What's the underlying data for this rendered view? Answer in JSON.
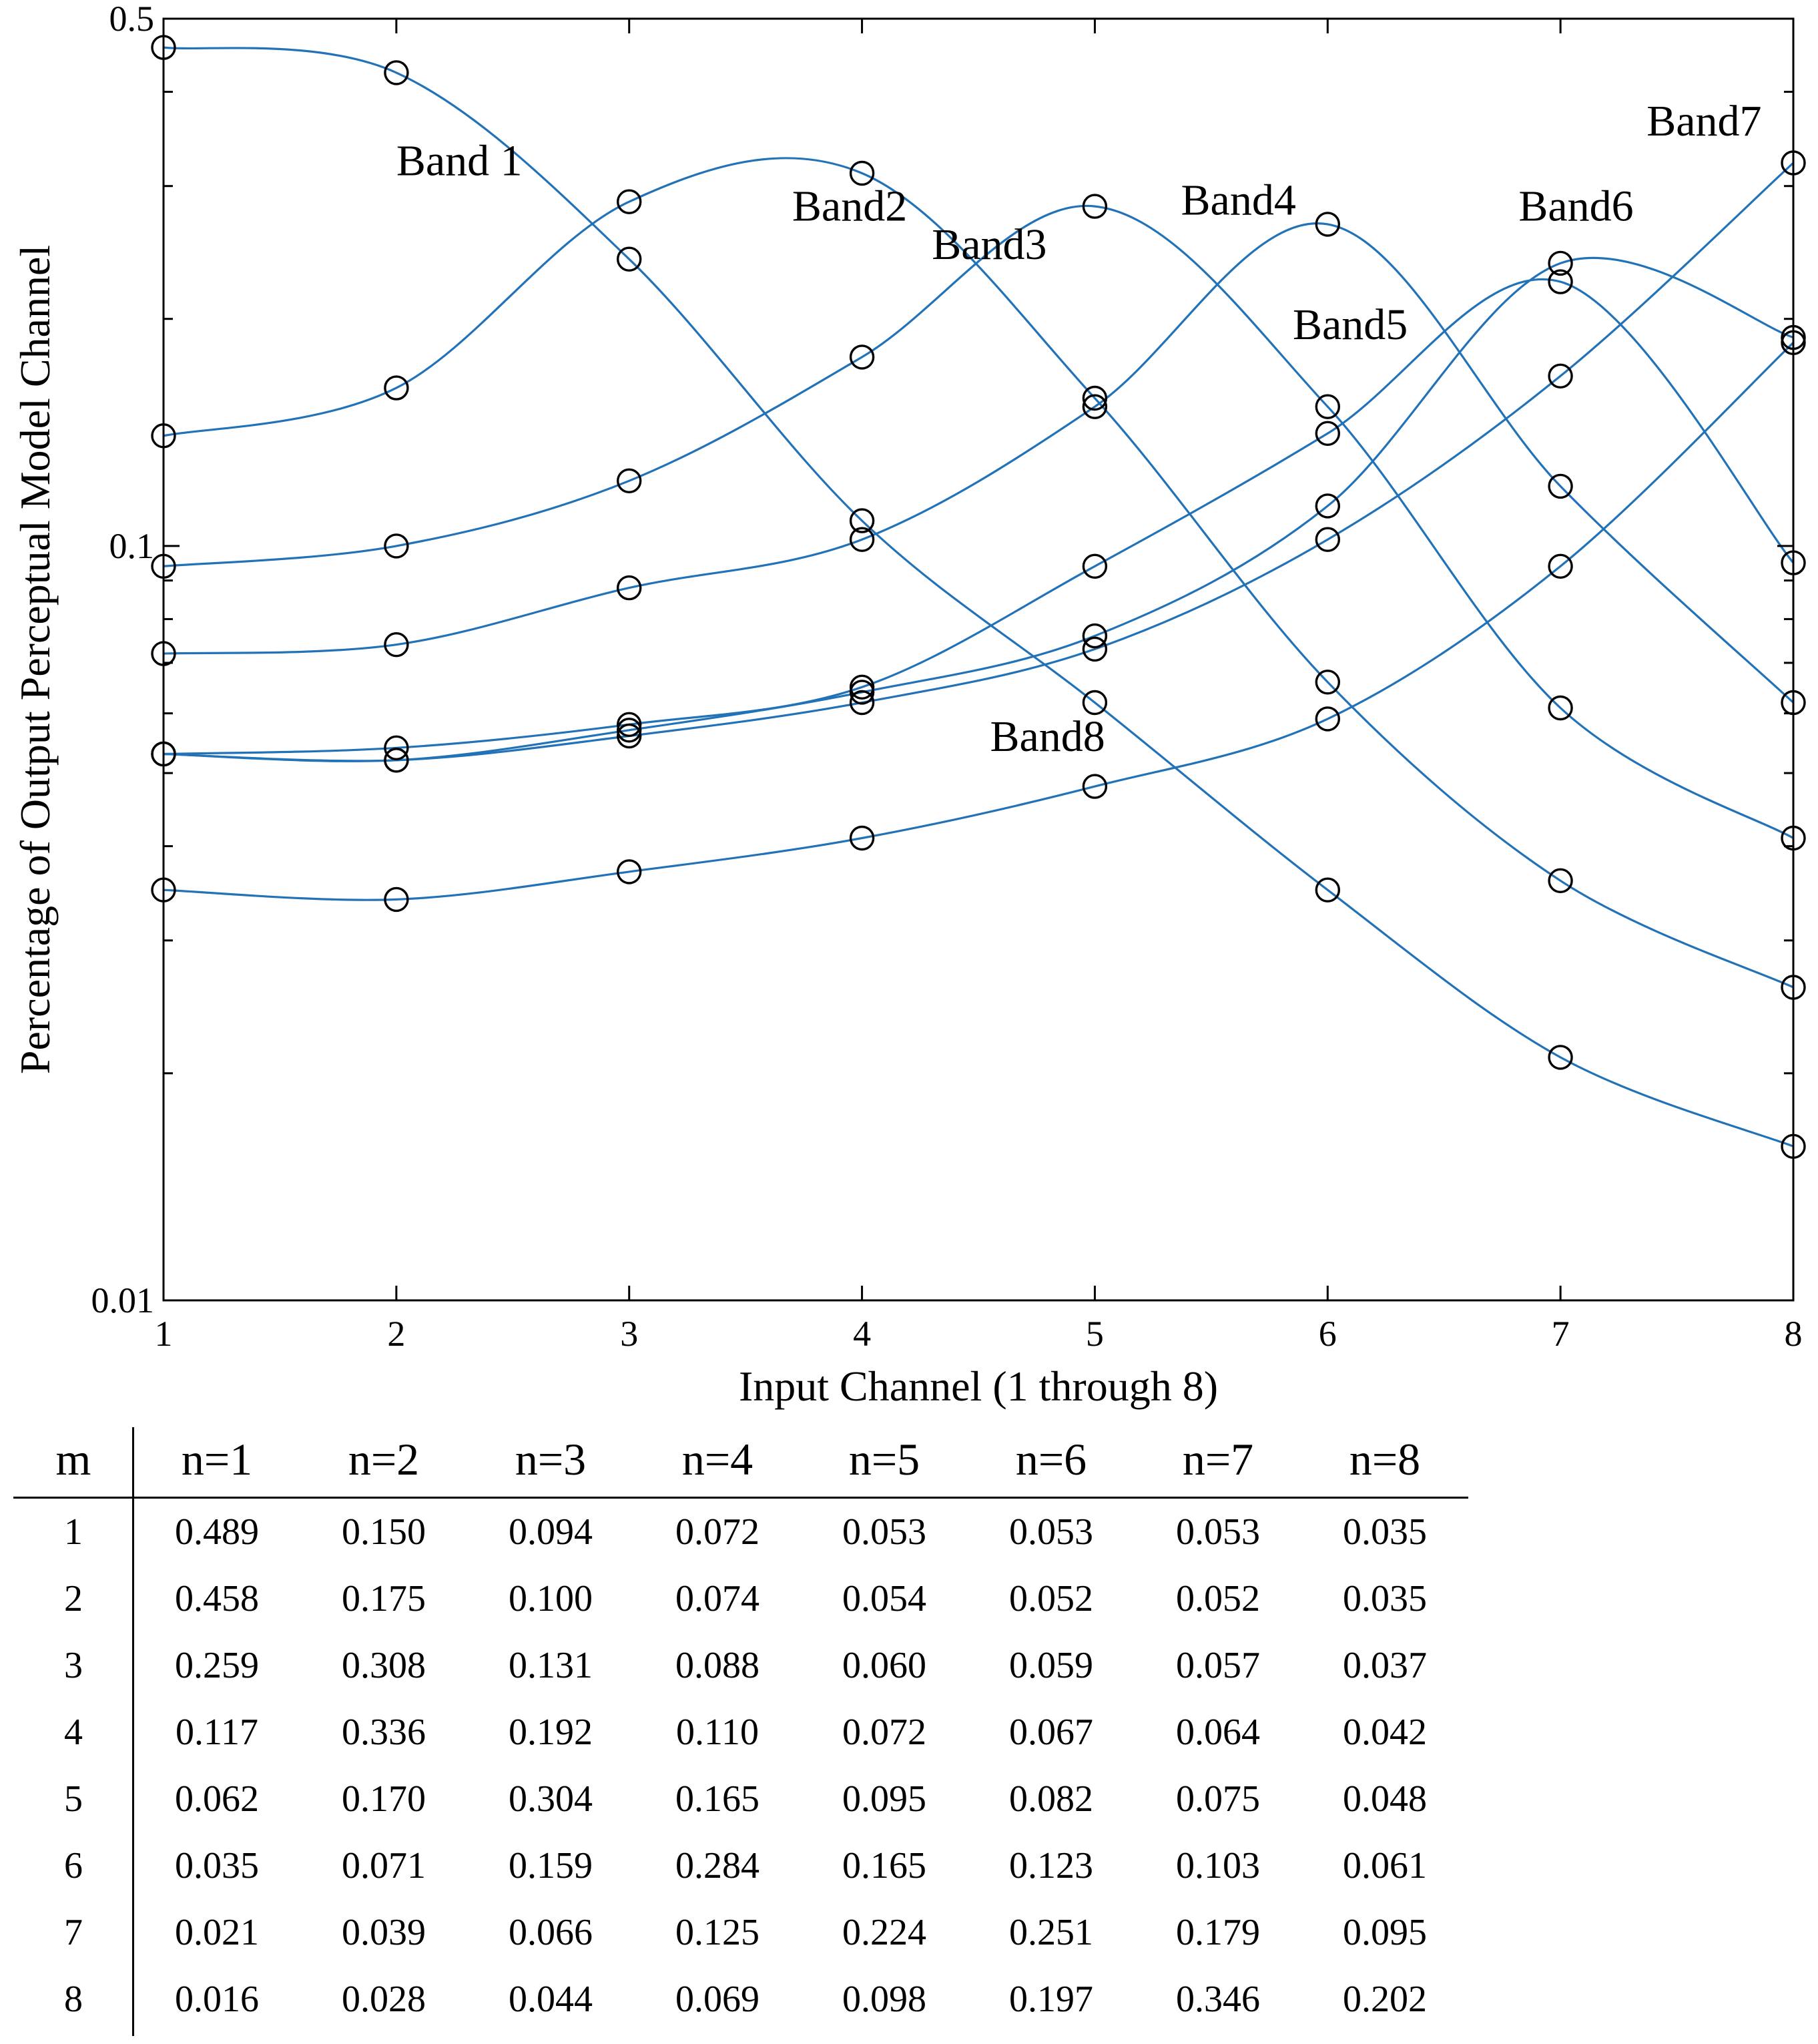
{
  "chart_data": {
    "type": "line",
    "title": "",
    "xlabel": "Input Channel (1 through 8)",
    "ylabel": "Percentage of Output Perceptual Model Channel",
    "x": [
      1,
      2,
      3,
      4,
      5,
      6,
      7,
      8
    ],
    "xlim": [
      1,
      8
    ],
    "ylim": [
      0.01,
      0.5
    ],
    "yscale": "log",
    "ytick_labels": [
      "0.01",
      "0.1",
      "0.5"
    ],
    "xtick_labels": [
      "1",
      "2",
      "3",
      "4",
      "5",
      "6",
      "7",
      "8"
    ],
    "grid": false,
    "line_color": "#2272b8",
    "marker_color": "#000000",
    "series": [
      {
        "name": "Band 1",
        "values": [
          0.458,
          0.424,
          0.24,
          0.108,
          0.062,
          0.035,
          0.021,
          0.016
        ]
      },
      {
        "name": "Band2",
        "values": [
          0.14,
          0.162,
          0.286,
          0.312,
          0.157,
          0.066,
          0.036,
          0.026
        ]
      },
      {
        "name": "Band3",
        "values": [
          0.094,
          0.1,
          0.122,
          0.178,
          0.282,
          0.153,
          0.061,
          0.041
        ]
      },
      {
        "name": "Band4",
        "values": [
          0.072,
          0.074,
          0.088,
          0.102,
          0.153,
          0.267,
          0.12,
          0.062
        ]
      },
      {
        "name": "Band5",
        "values": [
          0.053,
          0.054,
          0.058,
          0.065,
          0.094,
          0.141,
          0.224,
          0.095
        ]
      },
      {
        "name": "Band6",
        "values": [
          0.053,
          0.052,
          0.057,
          0.064,
          0.076,
          0.113,
          0.237,
          0.189
        ]
      },
      {
        "name": "Band7",
        "values": [
          0.053,
          0.052,
          0.056,
          0.062,
          0.073,
          0.102,
          0.168,
          0.322
        ]
      },
      {
        "name": "Band8",
        "values": [
          0.035,
          0.034,
          0.037,
          0.041,
          0.048,
          0.059,
          0.094,
          0.186
        ]
      }
    ],
    "annotations": [
      "Band 1",
      "Band2",
      "Band3",
      "Band4",
      "Band5",
      "Band6",
      "Band7",
      "Band8"
    ]
  },
  "table": {
    "header_m": "m",
    "headers": [
      "n=1",
      "n=2",
      "n=3",
      "n=4",
      "n=5",
      "n=6",
      "n=7",
      "n=8"
    ],
    "rows": [
      {
        "m": "1",
        "values": [
          "0.489",
          "0.150",
          "0.094",
          "0.072",
          "0.053",
          "0.053",
          "0.053",
          "0.035"
        ]
      },
      {
        "m": "2",
        "values": [
          "0.458",
          "0.175",
          "0.100",
          "0.074",
          "0.054",
          "0.052",
          "0.052",
          "0.035"
        ]
      },
      {
        "m": "3",
        "values": [
          "0.259",
          "0.308",
          "0.131",
          "0.088",
          "0.060",
          "0.059",
          "0.057",
          "0.037"
        ]
      },
      {
        "m": "4",
        "values": [
          "0.117",
          "0.336",
          "0.192",
          "0.110",
          "0.072",
          "0.067",
          "0.064",
          "0.042"
        ]
      },
      {
        "m": "5",
        "values": [
          "0.062",
          "0.170",
          "0.304",
          "0.165",
          "0.095",
          "0.082",
          "0.075",
          "0.048"
        ]
      },
      {
        "m": "6",
        "values": [
          "0.035",
          "0.071",
          "0.159",
          "0.284",
          "0.165",
          "0.123",
          "0.103",
          "0.061"
        ]
      },
      {
        "m": "7",
        "values": [
          "0.021",
          "0.039",
          "0.066",
          "0.125",
          "0.224",
          "0.251",
          "0.179",
          "0.095"
        ]
      },
      {
        "m": "8",
        "values": [
          "0.016",
          "0.028",
          "0.044",
          "0.069",
          "0.098",
          "0.197",
          "0.346",
          "0.202"
        ]
      }
    ]
  }
}
